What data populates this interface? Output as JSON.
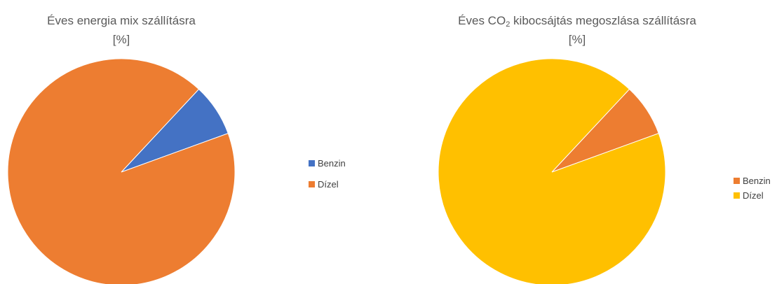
{
  "charts": [
    {
      "title_line1": "Éves energia mix szállításra",
      "title_line2": "[%]",
      "legend": [
        {
          "label": "Benzin",
          "color": "#4472C4"
        },
        {
          "label": "Dízel",
          "color": "#ED7D31"
        }
      ]
    },
    {
      "title_pre": "Éves CO",
      "title_sub": "2",
      "title_post": " kibocsájtás megoszlása szállításra",
      "title_line2": "[%]",
      "legend": [
        {
          "label": "Benzin",
          "color": "#ED7D31"
        },
        {
          "label": "Dízel",
          "color": "#FFC000"
        }
      ]
    }
  ],
  "chart_data": [
    {
      "type": "pie",
      "title": "Éves energia mix szállításra [%]",
      "categories": [
        "Benzin",
        "Dízel"
      ],
      "values": [
        7.5,
        92.5
      ],
      "colors": [
        "#4472C4",
        "#ED7D31"
      ],
      "legend_position": "right"
    },
    {
      "type": "pie",
      "title": "Éves CO2 kibocsájtás megoszlása szállításra [%]",
      "categories": [
        "Benzin",
        "Dízel"
      ],
      "values": [
        7.5,
        92.5
      ],
      "colors": [
        "#ED7D31",
        "#FFC000"
      ],
      "legend_position": "right"
    }
  ]
}
